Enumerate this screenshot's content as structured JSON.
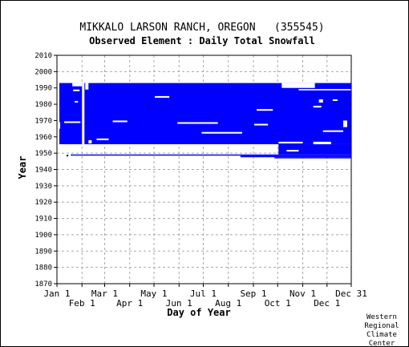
{
  "chart_data": {
    "type": "heatmap",
    "title": "MIKKALO LARSON RANCH, OREGON   (355545)",
    "subtitle": "Observed Element : Daily Total Snowfall",
    "xlabel": "Day of Year",
    "ylabel": "Year",
    "xlim": [
      1,
      365
    ],
    "ylim": [
      1870,
      2010
    ],
    "y_ticks": [
      "1870",
      "1880",
      "1890",
      "1900",
      "1910",
      "1920",
      "1930",
      "1940",
      "1950",
      "1960",
      "1970",
      "1980",
      "1990",
      "2000",
      "2010"
    ],
    "x_ticks_upper": [
      {
        "label": "Jan 1",
        "day": 1
      },
      {
        "label": "Mar 1",
        "day": 60
      },
      {
        "label": "May 1",
        "day": 121
      },
      {
        "label": "Jul 1",
        "day": 182
      },
      {
        "label": "Sep 1",
        "day": 244
      },
      {
        "label": "Nov 1",
        "day": 305
      },
      {
        "label": "Dec 31",
        "day": 365
      }
    ],
    "x_ticks_lower": [
      {
        "label": "Feb 1",
        "day": 32
      },
      {
        "label": "Apr 1",
        "day": 91
      },
      {
        "label": "Jun 1",
        "day": 152
      },
      {
        "label": "Aug 1",
        "day": 213
      },
      {
        "label": "Oct 1",
        "day": 274
      },
      {
        "label": "Dec 1",
        "day": 335
      }
    ],
    "grid": true,
    "color": "#0000ff",
    "blocks": [
      {
        "day_start": 1,
        "day_end": 365,
        "year_start": 1955.5,
        "year_end": 1993
      },
      {
        "day_start": 18,
        "day_end": 365,
        "year_start": 1948.5,
        "year_end": 1949.2
      },
      {
        "day_start": 228,
        "day_end": 365,
        "year_start": 1947.5,
        "year_end": 1948.5
      },
      {
        "day_start": 270,
        "day_end": 365,
        "year_start": 1946.8,
        "year_end": 1947.5
      },
      {
        "day_start": 275,
        "day_end": 365,
        "year_start": 1949.2,
        "year_end": 1955.5
      }
    ],
    "gaps": [
      {
        "day_start": 1,
        "day_end": 4,
        "year_start": 1955.5,
        "year_end": 1993
      },
      {
        "day_start": 1,
        "day_end": 5,
        "year_start": 1965,
        "year_end": 1969
      },
      {
        "day_start": 20,
        "day_end": 32,
        "year_start": 1991,
        "year_end": 1993
      },
      {
        "day_start": 21,
        "day_end": 29,
        "year_start": 1988,
        "year_end": 1989
      },
      {
        "day_start": 23,
        "day_end": 27,
        "year_start": 1981,
        "year_end": 1982
      },
      {
        "day_start": 32,
        "day_end": 35,
        "year_start": 1955.5,
        "year_end": 1993
      },
      {
        "day_start": 36,
        "day_end": 40,
        "year_start": 1989,
        "year_end": 1993
      },
      {
        "day_start": 40,
        "day_end": 44,
        "year_start": 1956,
        "year_end": 1958
      },
      {
        "day_start": 50,
        "day_end": 65,
        "year_start": 1958,
        "year_end": 1959
      },
      {
        "day_start": 10,
        "day_end": 30,
        "year_start": 1968.5,
        "year_end": 1969.5
      },
      {
        "day_start": 70,
        "day_end": 88,
        "year_start": 1969,
        "year_end": 1970
      },
      {
        "day_start": 122,
        "day_end": 140,
        "year_start": 1984,
        "year_end": 1985
      },
      {
        "day_start": 150,
        "day_end": 200,
        "year_start": 1968,
        "year_end": 1969
      },
      {
        "day_start": 180,
        "day_end": 230,
        "year_start": 1962,
        "year_end": 1963
      },
      {
        "day_start": 245,
        "day_end": 262,
        "year_start": 1967,
        "year_end": 1968
      },
      {
        "day_start": 248,
        "day_end": 268,
        "year_start": 1976,
        "year_end": 1977
      },
      {
        "day_start": 279,
        "day_end": 320,
        "year_start": 1990,
        "year_end": 1993
      },
      {
        "day_start": 300,
        "day_end": 365,
        "year_start": 1988.5,
        "year_end": 1989.3
      },
      {
        "day_start": 318,
        "day_end": 328,
        "year_start": 1978,
        "year_end": 1979
      },
      {
        "day_start": 325,
        "day_end": 330,
        "year_start": 1981,
        "year_end": 1983
      },
      {
        "day_start": 330,
        "day_end": 355,
        "year_start": 1963,
        "year_end": 1964
      },
      {
        "day_start": 342,
        "day_end": 348,
        "year_start": 1982,
        "year_end": 1983
      },
      {
        "day_start": 275,
        "day_end": 305,
        "year_start": 1956,
        "year_end": 1957
      },
      {
        "day_start": 318,
        "day_end": 340,
        "year_start": 1955.5,
        "year_end": 1957
      },
      {
        "day_start": 355,
        "day_end": 360,
        "year_start": 1966,
        "year_end": 1970
      },
      {
        "day_start": 285,
        "day_end": 300,
        "year_start": 1951,
        "year_end": 1952
      }
    ],
    "points": [
      {
        "day": 14,
        "year": 1948.5
      }
    ],
    "credit": [
      "Western",
      "Regional",
      "Climate",
      "Center"
    ]
  }
}
